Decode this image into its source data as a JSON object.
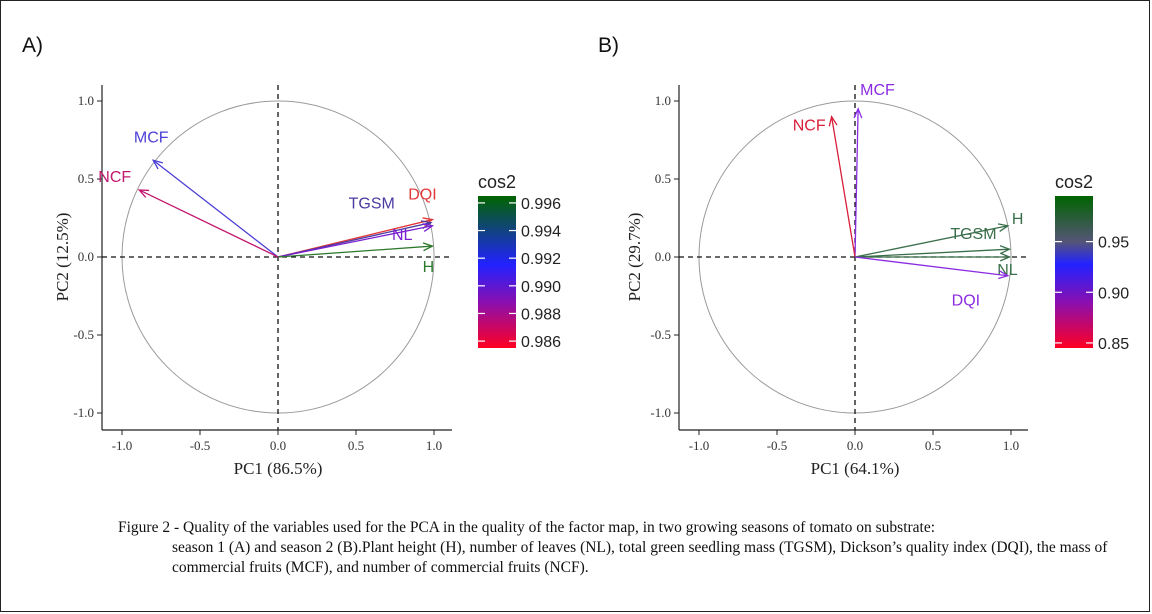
{
  "chart_data": [
    {
      "type": "pca-variable-correlation-circle",
      "panel_label": "A)",
      "xlabel": "PC1 (86.5%)",
      "ylabel": "PC2 (12.5%)",
      "xlim": [
        -1.1,
        1.1
      ],
      "ylim": [
        -1.1,
        1.1
      ],
      "xticks": [
        "-1.0",
        "-0.5",
        "0.0",
        "0.5",
        "1.0"
      ],
      "yticks": [
        "-1.0",
        "-0.5",
        "0.0",
        "0.5",
        "1.0"
      ],
      "legend_title": "cos2",
      "legend_ticks": [
        "0.996",
        "0.994",
        "0.992",
        "0.990",
        "0.988",
        "0.986"
      ],
      "legend_range": [
        0.9855,
        0.9965
      ],
      "variables": [
        {
          "name": "MCF",
          "x": -0.8,
          "y": 0.62,
          "cos2": 0.9925,
          "color": "#4c3fd6"
        },
        {
          "name": "NCF",
          "x": -0.89,
          "y": 0.43,
          "cos2": 0.9885,
          "color": "#c2186e"
        },
        {
          "name": "DQI",
          "x": 0.99,
          "y": 0.24,
          "cos2": 0.9865,
          "color": "#e23838"
        },
        {
          "name": "TGSM",
          "x": 0.98,
          "y": 0.22,
          "cos2": 0.9935,
          "color": "#4b3aa0"
        },
        {
          "name": "NL",
          "x": 0.99,
          "y": 0.2,
          "cos2": 0.9905,
          "color": "#7a1fd0"
        },
        {
          "name": "H",
          "x": 0.99,
          "y": 0.07,
          "cos2": 0.996,
          "color": "#2d7a2d"
        }
      ]
    },
    {
      "type": "pca-variable-correlation-circle",
      "panel_label": "B)",
      "xlabel": "PC1 (64.1%)",
      "ylabel": "PC2 (29.7%)",
      "xlim": [
        -1.1,
        1.1
      ],
      "ylim": [
        -1.1,
        1.1
      ],
      "xticks": [
        "-1.0",
        "-0.5",
        "0.0",
        "0.5",
        "1.0"
      ],
      "yticks": [
        "-1.0",
        "-0.5",
        "0.0",
        "0.5",
        "1.0"
      ],
      "legend_title": "cos2",
      "legend_ticks": [
        "0.95",
        "0.90",
        "0.85"
      ],
      "legend_range": [
        0.845,
        0.995
      ],
      "variables": [
        {
          "name": "MCF",
          "x": 0.02,
          "y": 0.95,
          "cos2": 0.905,
          "color": "#8a2be2"
        },
        {
          "name": "NCF",
          "x": -0.15,
          "y": 0.9,
          "cos2": 0.86,
          "color": "#d81f3a"
        },
        {
          "name": "H",
          "x": 0.98,
          "y": 0.2,
          "cos2": 0.99,
          "color": "#3a6e4a"
        },
        {
          "name": "TGSM",
          "x": 0.99,
          "y": 0.05,
          "cos2": 0.98,
          "color": "#3a6e4a"
        },
        {
          "name": "NL",
          "x": 0.99,
          "y": 0.0,
          "cos2": 0.98,
          "color": "#3a6e4a"
        },
        {
          "name": "DQI",
          "x": 0.98,
          "y": -0.12,
          "cos2": 0.91,
          "color": "#8a2be2"
        }
      ]
    }
  ],
  "caption": {
    "first_line": "Figure 2 - Quality of the variables used for the PCA in the quality of the factor map, in two growing seasons of tomato on substrate:",
    "rest": "season 1 (A) and season 2 (B).Plant height (H), number of leaves (NL), total green seedling mass (TGSM), Dickson’s quality index (DQI), the mass of commercial fruits (MCF), and number of commercial fruits (NCF)."
  }
}
